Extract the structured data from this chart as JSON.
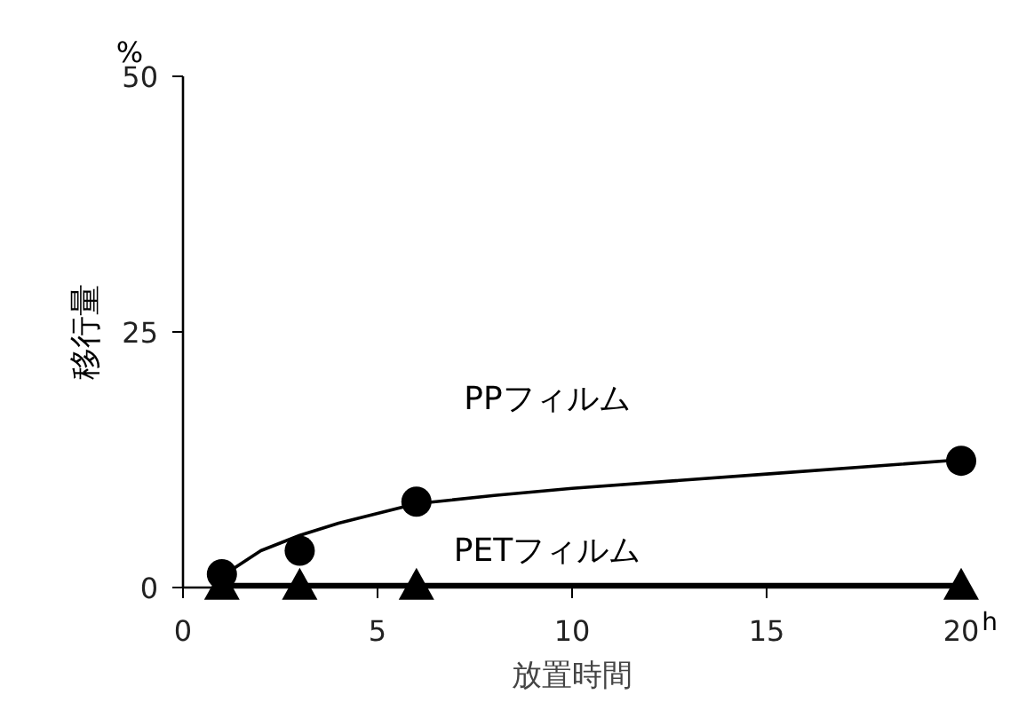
{
  "chart_data": {
    "type": "scatter",
    "xlabel": "放置時間",
    "ylabel": "移行量",
    "xlim": [
      0,
      20
    ],
    "xticks": [
      0,
      5,
      10,
      15,
      20
    ],
    "ylim": [
      0,
      50
    ],
    "yticks": [
      0,
      25,
      50
    ],
    "grid": false,
    "annotations": [
      "%",
      "h"
    ],
    "series": [
      {
        "name": "PPフィルム",
        "marker": "circle",
        "color": "#000000",
        "x": [
          1,
          3,
          6,
          20
        ],
        "values": [
          1.3,
          3.6,
          8.4,
          12.4
        ]
      },
      {
        "name": "PETフィルム",
        "marker": "triangle",
        "color": "#000000",
        "x": [
          1,
          3,
          6,
          20
        ],
        "values": [
          0.2,
          0.2,
          0.2,
          0.2
        ]
      },
      {
        "type": "line",
        "color": "#000000",
        "x": [
          1.2,
          2,
          3,
          4,
          6,
          8,
          10,
          15,
          20
        ],
        "values": [
          1.6,
          3.6,
          5.1,
          6.3,
          8.2,
          9.0,
          9.7,
          11.1,
          12.5
        ]
      },
      {
        "type": "line",
        "color": "#000000",
        "x": [
          1,
          20
        ],
        "values": [
          0.2,
          0.2
        ]
      }
    ]
  }
}
